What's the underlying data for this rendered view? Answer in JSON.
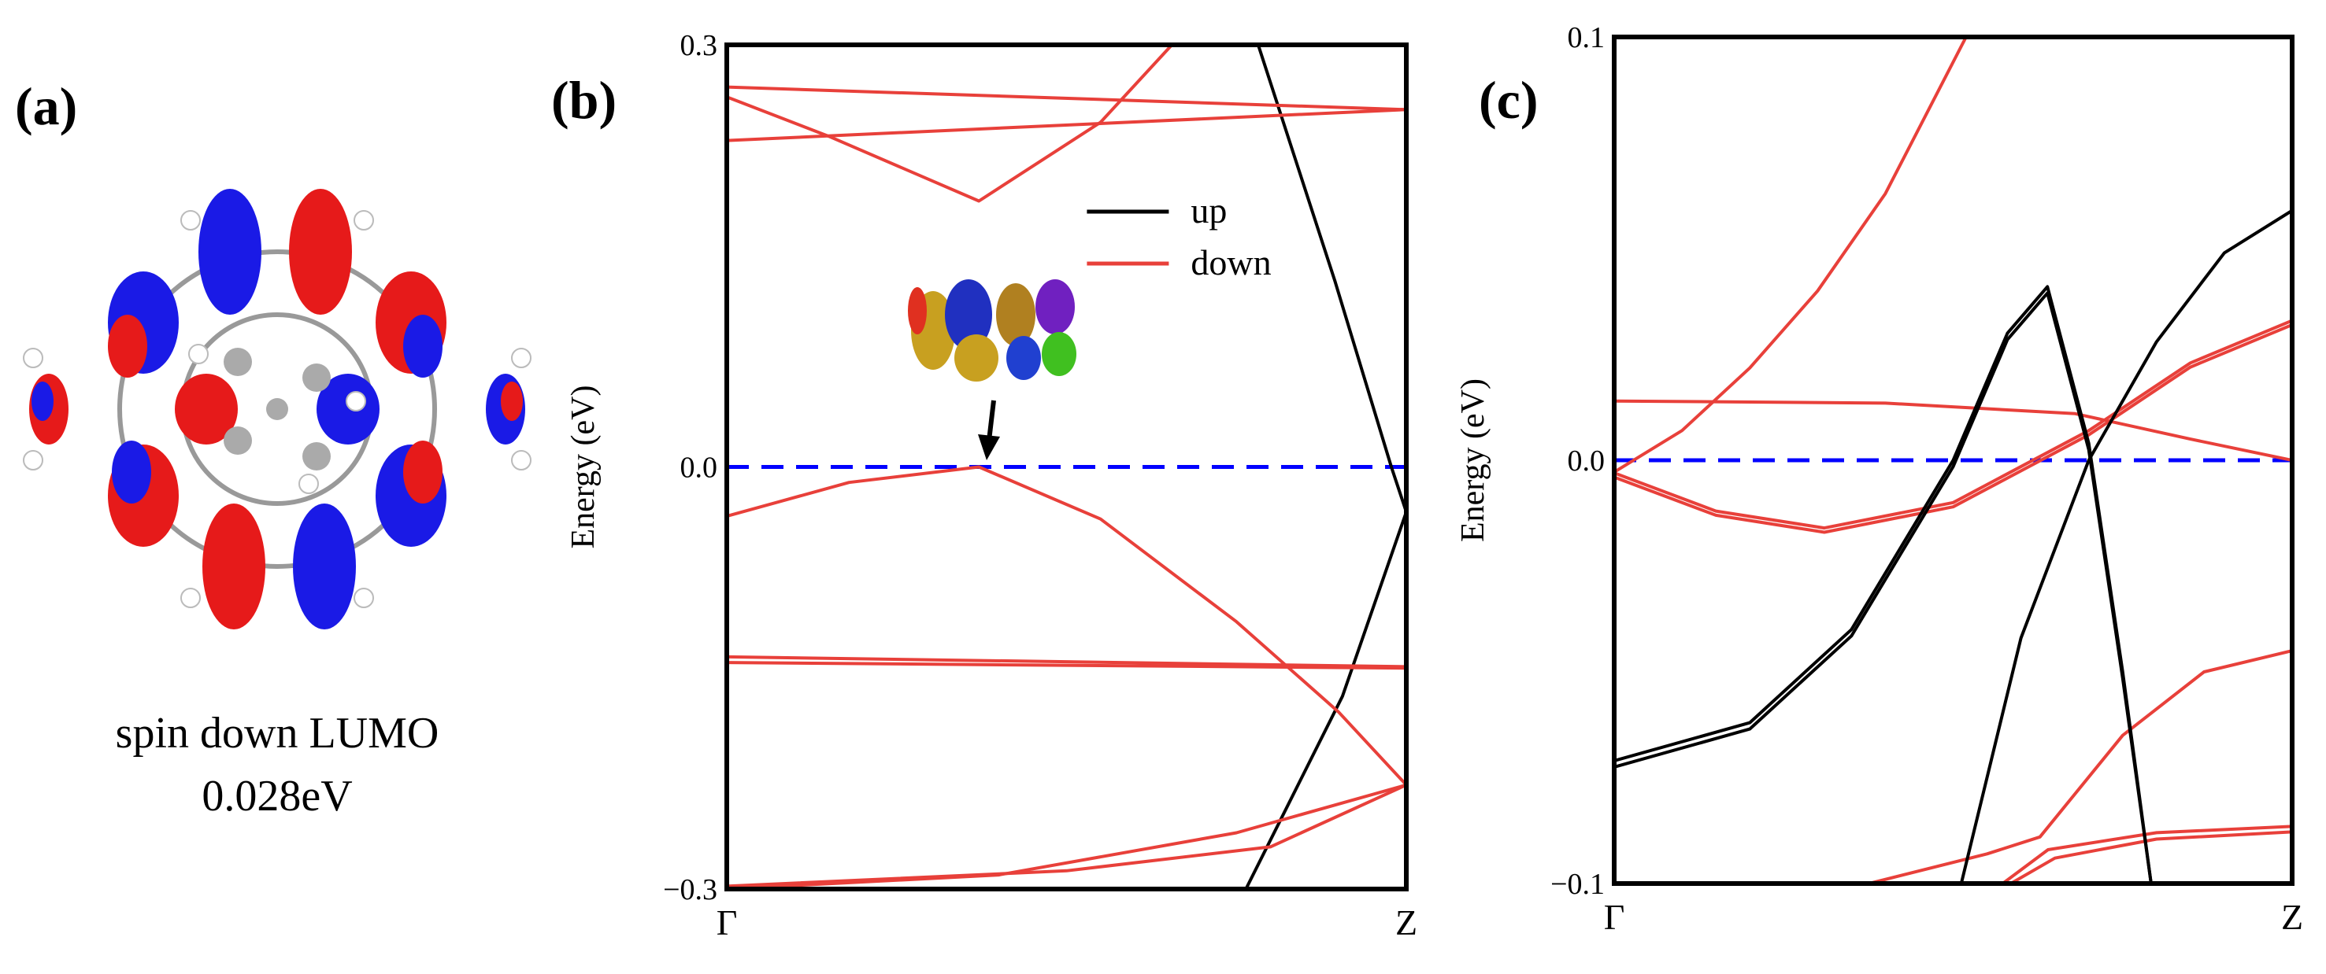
{
  "panel_a": {
    "label": "(a)",
    "caption": [
      "spin down LUMO",
      "0.028eV"
    ]
  },
  "chart_data": [
    {
      "type": "line",
      "panel_label": "(b)",
      "ylabel": "Energy (eV)",
      "xlim": [
        0,
        1
      ],
      "xticks": [
        {
          "value": 0,
          "label": "Γ"
        },
        {
          "value": 1,
          "label": "Z"
        }
      ],
      "ylim": [
        -0.3,
        0.3
      ],
      "yticks": [
        {
          "value": -0.3,
          "label": "−0.3"
        },
        {
          "value": 0,
          "label": "0.0"
        },
        0.3
      ],
      "hline": {
        "value": 0,
        "color": "#0000ff",
        "dash": true
      },
      "legend": "upper right",
      "series": [
        {
          "name": "up",
          "color": "#000000",
          "x": [
            0.782,
            0.895,
            0.978,
            1.0
          ],
          "values": [
            0.3,
            0.132,
            0.0,
            -0.032
          ]
        },
        {
          "color": "#000000",
          "x": [
            1.0,
            0.906,
            0.764
          ],
          "values": [
            -0.032,
            -0.163,
            -0.3
          ]
        },
        {
          "name": "down",
          "color": "#e8403a",
          "x": [
            0,
            1
          ],
          "values": [
            0.27,
            0.254
          ]
        },
        {
          "color": "#e8403a",
          "x": [
            0,
            1
          ],
          "values": [
            0.232,
            0.254
          ]
        },
        {
          "color": "#e8403a",
          "x": [
            0,
            0.15,
            0.371,
            0.55,
            0.655
          ],
          "values": [
            0.263,
            0.235,
            0.189,
            0.245,
            0.3
          ]
        },
        {
          "color": "#e8403a",
          "x": [
            0,
            0.18,
            0.371,
            0.55,
            0.75,
            0.9,
            1.0
          ],
          "values": [
            -0.035,
            -0.011,
            0.0,
            -0.037,
            -0.11,
            -0.174,
            -0.226
          ]
        },
        {
          "color": "#e8403a",
          "x": [
            0,
            1
          ],
          "values": [
            -0.135,
            -0.142
          ]
        },
        {
          "color": "#e8403a",
          "x": [
            0,
            1
          ],
          "values": [
            -0.139,
            -0.143
          ]
        },
        {
          "color": "#e8403a",
          "x": [
            0,
            0.5,
            0.8,
            1.0
          ],
          "values": [
            -0.298,
            -0.287,
            -0.27,
            -0.226
          ]
        },
        {
          "color": "#e8403a",
          "x": [
            0,
            0.4,
            0.75,
            1.0
          ],
          "values": [
            -0.3,
            -0.29,
            -0.26,
            -0.226
          ]
        }
      ]
    },
    {
      "type": "line",
      "panel_label": "(c)",
      "ylabel": "Energy (eV)",
      "xlim": [
        0,
        1
      ],
      "xticks": [
        {
          "value": 0,
          "label": "Γ"
        },
        {
          "value": 1,
          "label": "Z"
        }
      ],
      "ylim": [
        -0.1,
        0.1
      ],
      "yticks": [
        {
          "value": -0.1,
          "label": "−0.1"
        },
        {
          "value": 0,
          "label": "0.0"
        },
        0.1
      ],
      "hline": {
        "value": 0,
        "color": "#0000ff",
        "dash": true
      },
      "series": [
        {
          "color": "#e8403a",
          "x": [
            0,
            0.1,
            0.2,
            0.3,
            0.4,
            0.519
          ],
          "values": [
            -0.0028,
            0.007,
            0.0218,
            0.04,
            0.063,
            0.1
          ]
        },
        {
          "color": "#e8403a",
          "x": [
            0,
            0.4,
            0.68,
            0.85,
            1
          ],
          "values": [
            0.014,
            0.0135,
            0.011,
            0.005,
            0.0
          ]
        },
        {
          "color": "#e8403a",
          "x": [
            0,
            0.15,
            0.31,
            0.5,
            0.7,
            0.85,
            1
          ],
          "values": [
            -0.004,
            -0.013,
            -0.017,
            -0.011,
            0.006,
            0.022,
            0.032
          ]
        },
        {
          "color": "#e8403a",
          "x": [
            0,
            0.15,
            0.31,
            0.5,
            0.7,
            0.85,
            1
          ],
          "values": [
            -0.003,
            -0.012,
            -0.016,
            -0.01,
            0.007,
            0.023,
            0.033
          ]
        },
        {
          "color": "#e8403a",
          "x": [
            0.376,
            0.55,
            0.628,
            0.75,
            0.87,
            1
          ],
          "values": [
            -0.1,
            -0.093,
            -0.089,
            -0.065,
            -0.05,
            -0.045
          ]
        },
        {
          "color": "#e8403a",
          "x": [
            0.573,
            0.64,
            0.8,
            1
          ],
          "values": [
            -0.1,
            -0.092,
            -0.088,
            -0.0865
          ]
        },
        {
          "color": "#e8403a",
          "x": [
            0.585,
            0.65,
            0.8,
            1
          ],
          "values": [
            -0.1,
            -0.094,
            -0.0895,
            -0.0878
          ]
        },
        {
          "color": "#000000",
          "x": [
            0,
            0.2,
            0.35,
            0.5,
            0.58,
            0.639,
            0.7,
            0.75,
            0.792
          ],
          "values": [
            -0.071,
            -0.062,
            -0.04,
            0.0,
            0.03,
            0.041,
            0.004,
            -0.05,
            -0.1
          ]
        },
        {
          "color": "#000000",
          "x": [
            0,
            0.2,
            0.35,
            0.5,
            0.58,
            0.639,
            0.7,
            0.75,
            0.792
          ],
          "values": [
            -0.0725,
            -0.0635,
            -0.0415,
            -0.0015,
            0.0285,
            0.0395,
            0.0025,
            -0.0515,
            -0.1
          ]
        },
        {
          "color": "#000000",
          "x": [
            0.512,
            0.6,
            0.7,
            0.8,
            0.9,
            1
          ],
          "values": [
            -0.1,
            -0.042,
            0.0,
            0.028,
            0.049,
            0.059
          ]
        }
      ]
    }
  ]
}
